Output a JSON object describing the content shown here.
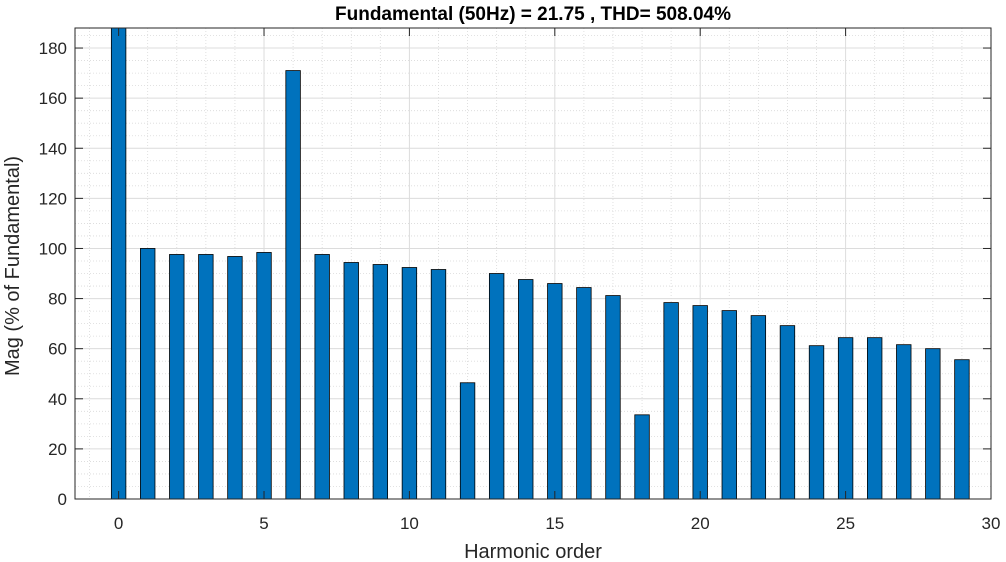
{
  "chart_data": {
    "type": "bar",
    "title": "Fundamental (50Hz) = 21.75 , THD= 508.04%",
    "xlabel": "Harmonic order",
    "ylabel": "Mag (% of Fundamental)",
    "xlim": [
      -1.5,
      30
    ],
    "ylim": [
      0,
      188
    ],
    "xticks": [
      0,
      5,
      10,
      15,
      20,
      25,
      30
    ],
    "yticks": [
      0,
      20,
      40,
      60,
      80,
      100,
      120,
      140,
      160,
      180
    ],
    "grid": true,
    "minor_grid": true,
    "x": [
      0,
      1,
      2,
      3,
      4,
      5,
      6,
      7,
      8,
      9,
      10,
      11,
      12,
      13,
      14,
      15,
      16,
      17,
      18,
      19,
      20,
      21,
      22,
      23,
      24,
      25,
      26,
      27,
      28,
      29
    ],
    "values": [
      188,
      100,
      97.6,
      97.6,
      96.8,
      98.4,
      171,
      97.6,
      94.4,
      93.6,
      92.4,
      91.6,
      46.4,
      90,
      87.6,
      86,
      84.4,
      81.2,
      33.6,
      78.4,
      77.2,
      75.2,
      73.2,
      69.2,
      61.2,
      64.4,
      64.4,
      61.6,
      60,
      55.6
    ],
    "bar_color": "#0072BD",
    "bar_edge_color": "#000000"
  }
}
